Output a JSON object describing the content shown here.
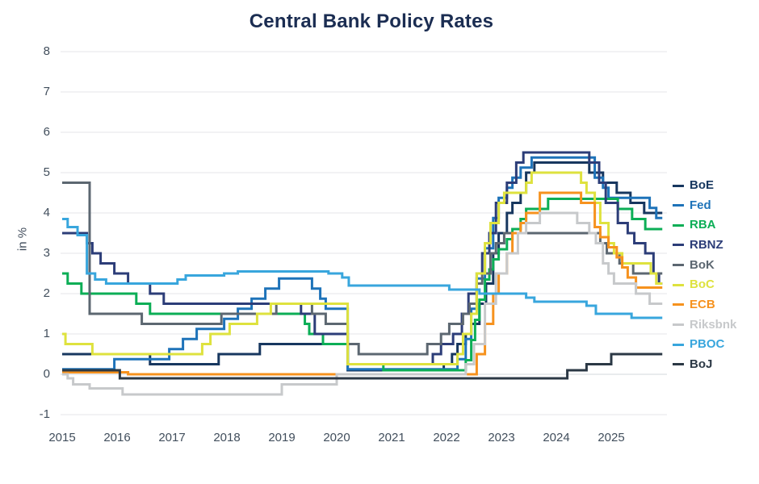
{
  "chart_data": {
    "type": "line",
    "step": true,
    "title": "Central Bank Policy Rates",
    "ylabel": "in %",
    "xlabel": "",
    "xlim": [
      2015.0,
      2025.93
    ],
    "ylim": [
      -1,
      8
    ],
    "yticks": [
      8,
      7,
      6,
      5,
      4,
      3,
      2,
      1,
      0,
      -1
    ],
    "xticks": [
      2015,
      2016,
      2017,
      2018,
      2019,
      2020,
      2021,
      2022,
      2023,
      2024,
      2025
    ],
    "grid": "horizontal",
    "legend_position": "right",
    "colors": {
      "grid": "#eaebed",
      "zero_grid": "#dcdfe2",
      "title": "#1b2d52",
      "tick_text": "#414e5c"
    },
    "series": [
      {
        "name": "BoE",
        "color": "#17375f",
        "points": [
          [
            2015.0,
            0.5
          ],
          [
            2016.6,
            0.25
          ],
          [
            2017.85,
            0.5
          ],
          [
            2018.6,
            0.75
          ],
          [
            2020.2,
            0.1
          ],
          [
            2021.95,
            0.25
          ],
          [
            2022.1,
            0.5
          ],
          [
            2022.2,
            0.75
          ],
          [
            2022.35,
            1.0
          ],
          [
            2022.45,
            1.25
          ],
          [
            2022.6,
            1.75
          ],
          [
            2022.72,
            2.25
          ],
          [
            2022.85,
            3.0
          ],
          [
            2022.95,
            3.5
          ],
          [
            2023.1,
            4.0
          ],
          [
            2023.2,
            4.25
          ],
          [
            2023.35,
            4.5
          ],
          [
            2023.45,
            5.0
          ],
          [
            2023.6,
            5.25
          ],
          [
            2024.6,
            5.0
          ],
          [
            2024.85,
            4.75
          ],
          [
            2025.1,
            4.5
          ],
          [
            2025.35,
            4.25
          ],
          [
            2025.6,
            4.0
          ]
        ]
      },
      {
        "name": "Fed",
        "color": "#1e73b9",
        "points": [
          [
            2015.0,
            0.125
          ],
          [
            2015.95,
            0.375
          ],
          [
            2016.95,
            0.625
          ],
          [
            2017.2,
            0.875
          ],
          [
            2017.45,
            1.125
          ],
          [
            2017.95,
            1.375
          ],
          [
            2018.2,
            1.625
          ],
          [
            2018.45,
            1.875
          ],
          [
            2018.7,
            2.125
          ],
          [
            2018.95,
            2.375
          ],
          [
            2019.55,
            2.125
          ],
          [
            2019.7,
            1.875
          ],
          [
            2019.8,
            1.625
          ],
          [
            2020.2,
            0.125
          ],
          [
            2022.2,
            0.375
          ],
          [
            2022.35,
            0.875
          ],
          [
            2022.45,
            1.625
          ],
          [
            2022.55,
            2.375
          ],
          [
            2022.7,
            3.125
          ],
          [
            2022.85,
            3.875
          ],
          [
            2022.95,
            4.375
          ],
          [
            2023.1,
            4.625
          ],
          [
            2023.2,
            4.875
          ],
          [
            2023.35,
            5.125
          ],
          [
            2023.55,
            5.375
          ],
          [
            2024.7,
            4.875
          ],
          [
            2024.85,
            4.625
          ],
          [
            2024.95,
            4.375
          ],
          [
            2025.7,
            4.125
          ],
          [
            2025.82,
            3.875
          ]
        ]
      },
      {
        "name": "RBA",
        "color": "#0cae56",
        "points": [
          [
            2015.0,
            2.5
          ],
          [
            2015.1,
            2.25
          ],
          [
            2015.35,
            2.0
          ],
          [
            2016.35,
            1.75
          ],
          [
            2016.6,
            1.5
          ],
          [
            2019.42,
            1.25
          ],
          [
            2019.5,
            1.0
          ],
          [
            2019.75,
            0.75
          ],
          [
            2020.2,
            0.25
          ],
          [
            2020.85,
            0.1
          ],
          [
            2022.35,
            0.35
          ],
          [
            2022.45,
            0.85
          ],
          [
            2022.52,
            1.35
          ],
          [
            2022.6,
            1.85
          ],
          [
            2022.7,
            2.35
          ],
          [
            2022.78,
            2.6
          ],
          [
            2022.85,
            2.85
          ],
          [
            2022.95,
            3.1
          ],
          [
            2023.1,
            3.35
          ],
          [
            2023.2,
            3.6
          ],
          [
            2023.35,
            3.85
          ],
          [
            2023.45,
            4.1
          ],
          [
            2023.85,
            4.35
          ],
          [
            2025.12,
            4.1
          ],
          [
            2025.38,
            3.85
          ],
          [
            2025.62,
            3.6
          ]
        ]
      },
      {
        "name": "RBNZ",
        "color": "#2c3d78",
        "points": [
          [
            2015.0,
            3.5
          ],
          [
            2015.45,
            3.25
          ],
          [
            2015.55,
            3.0
          ],
          [
            2015.7,
            2.75
          ],
          [
            2015.95,
            2.5
          ],
          [
            2016.2,
            2.25
          ],
          [
            2016.6,
            2.0
          ],
          [
            2016.85,
            1.75
          ],
          [
            2019.35,
            1.5
          ],
          [
            2019.6,
            1.0
          ],
          [
            2020.2,
            0.25
          ],
          [
            2021.75,
            0.5
          ],
          [
            2021.9,
            0.75
          ],
          [
            2022.12,
            1.0
          ],
          [
            2022.28,
            1.5
          ],
          [
            2022.4,
            2.0
          ],
          [
            2022.55,
            2.5
          ],
          [
            2022.65,
            3.0
          ],
          [
            2022.78,
            3.5
          ],
          [
            2022.9,
            4.25
          ],
          [
            2023.1,
            4.75
          ],
          [
            2023.27,
            5.25
          ],
          [
            2023.4,
            5.5
          ],
          [
            2024.6,
            5.25
          ],
          [
            2024.78,
            4.75
          ],
          [
            2024.9,
            4.25
          ],
          [
            2025.12,
            3.75
          ],
          [
            2025.3,
            3.5
          ],
          [
            2025.42,
            3.25
          ],
          [
            2025.62,
            3.0
          ],
          [
            2025.77,
            2.5
          ],
          [
            2025.87,
            2.25
          ]
        ]
      },
      {
        "name": "BoK",
        "color": "#5c6771",
        "points": [
          [
            2015.0,
            4.75
          ],
          [
            2015.5,
            1.5
          ],
          [
            2016.45,
            1.25
          ],
          [
            2017.9,
            1.5
          ],
          [
            2018.9,
            1.75
          ],
          [
            2019.55,
            1.5
          ],
          [
            2019.8,
            1.25
          ],
          [
            2020.2,
            0.75
          ],
          [
            2020.4,
            0.5
          ],
          [
            2021.65,
            0.75
          ],
          [
            2021.9,
            1.0
          ],
          [
            2022.05,
            1.25
          ],
          [
            2022.3,
            1.5
          ],
          [
            2022.42,
            1.75
          ],
          [
            2022.55,
            2.25
          ],
          [
            2022.65,
            2.5
          ],
          [
            2022.8,
            3.0
          ],
          [
            2022.9,
            3.25
          ],
          [
            2023.05,
            3.5
          ],
          [
            2024.8,
            3.25
          ],
          [
            2024.92,
            3.0
          ],
          [
            2025.15,
            2.75
          ],
          [
            2025.4,
            2.5
          ]
        ]
      },
      {
        "name": "BoC",
        "color": "#dee23e",
        "points": [
          [
            2015.0,
            1.0
          ],
          [
            2015.06,
            0.75
          ],
          [
            2015.55,
            0.5
          ],
          [
            2017.55,
            0.75
          ],
          [
            2017.7,
            1.0
          ],
          [
            2018.05,
            1.25
          ],
          [
            2018.55,
            1.5
          ],
          [
            2018.8,
            1.75
          ],
          [
            2020.2,
            0.25
          ],
          [
            2022.2,
            0.5
          ],
          [
            2022.3,
            1.0
          ],
          [
            2022.45,
            1.5
          ],
          [
            2022.55,
            2.5
          ],
          [
            2022.7,
            3.25
          ],
          [
            2022.8,
            3.75
          ],
          [
            2022.95,
            4.25
          ],
          [
            2023.05,
            4.5
          ],
          [
            2023.45,
            4.75
          ],
          [
            2023.55,
            5.0
          ],
          [
            2024.45,
            4.75
          ],
          [
            2024.55,
            4.5
          ],
          [
            2024.7,
            4.25
          ],
          [
            2024.8,
            3.75
          ],
          [
            2024.95,
            3.25
          ],
          [
            2025.05,
            3.0
          ],
          [
            2025.2,
            2.75
          ],
          [
            2025.72,
            2.5
          ],
          [
            2025.82,
            2.25
          ]
        ]
      },
      {
        "name": "ECB",
        "color": "#f6921e",
        "points": [
          [
            2015.0,
            0.05
          ],
          [
            2016.2,
            0.0
          ],
          [
            2022.55,
            0.5
          ],
          [
            2022.7,
            1.25
          ],
          [
            2022.85,
            2.0
          ],
          [
            2022.95,
            2.5
          ],
          [
            2023.1,
            3.0
          ],
          [
            2023.2,
            3.5
          ],
          [
            2023.35,
            3.75
          ],
          [
            2023.45,
            4.0
          ],
          [
            2023.7,
            4.5
          ],
          [
            2024.45,
            4.25
          ],
          [
            2024.7,
            3.65
          ],
          [
            2024.8,
            3.4
          ],
          [
            2024.95,
            3.15
          ],
          [
            2025.1,
            2.9
          ],
          [
            2025.2,
            2.65
          ],
          [
            2025.3,
            2.4
          ],
          [
            2025.45,
            2.15
          ]
        ]
      },
      {
        "name": "Riksbnk",
        "color": "#c7c9cb",
        "points": [
          [
            2015.0,
            0.0
          ],
          [
            2015.1,
            -0.1
          ],
          [
            2015.2,
            -0.25
          ],
          [
            2015.5,
            -0.35
          ],
          [
            2016.1,
            -0.5
          ],
          [
            2019.0,
            -0.25
          ],
          [
            2020.0,
            0.0
          ],
          [
            2022.35,
            0.25
          ],
          [
            2022.5,
            0.75
          ],
          [
            2022.7,
            1.75
          ],
          [
            2022.9,
            2.5
          ],
          [
            2023.1,
            3.0
          ],
          [
            2023.3,
            3.5
          ],
          [
            2023.45,
            3.75
          ],
          [
            2023.7,
            4.0
          ],
          [
            2024.38,
            3.75
          ],
          [
            2024.6,
            3.5
          ],
          [
            2024.72,
            3.25
          ],
          [
            2024.85,
            2.75
          ],
          [
            2024.95,
            2.5
          ],
          [
            2025.05,
            2.25
          ],
          [
            2025.45,
            2.0
          ],
          [
            2025.7,
            1.75
          ]
        ]
      },
      {
        "name": "PBOC",
        "color": "#38a6dd",
        "points": [
          [
            2015.0,
            3.85
          ],
          [
            2015.1,
            3.65
          ],
          [
            2015.28,
            3.45
          ],
          [
            2015.45,
            2.5
          ],
          [
            2015.6,
            2.35
          ],
          [
            2015.8,
            2.25
          ],
          [
            2017.1,
            2.35
          ],
          [
            2017.25,
            2.45
          ],
          [
            2017.95,
            2.5
          ],
          [
            2018.2,
            2.55
          ],
          [
            2019.85,
            2.5
          ],
          [
            2020.1,
            2.4
          ],
          [
            2020.22,
            2.2
          ],
          [
            2022.05,
            2.1
          ],
          [
            2022.6,
            2.0
          ],
          [
            2023.45,
            1.9
          ],
          [
            2023.6,
            1.8
          ],
          [
            2024.55,
            1.7
          ],
          [
            2024.72,
            1.5
          ],
          [
            2025.37,
            1.4
          ]
        ]
      },
      {
        "name": "BoJ",
        "color": "#2b3845",
        "points": [
          [
            2015.0,
            0.1
          ],
          [
            2016.05,
            -0.1
          ],
          [
            2024.2,
            0.1
          ],
          [
            2024.55,
            0.25
          ],
          [
            2025.0,
            0.5
          ]
        ]
      }
    ]
  }
}
